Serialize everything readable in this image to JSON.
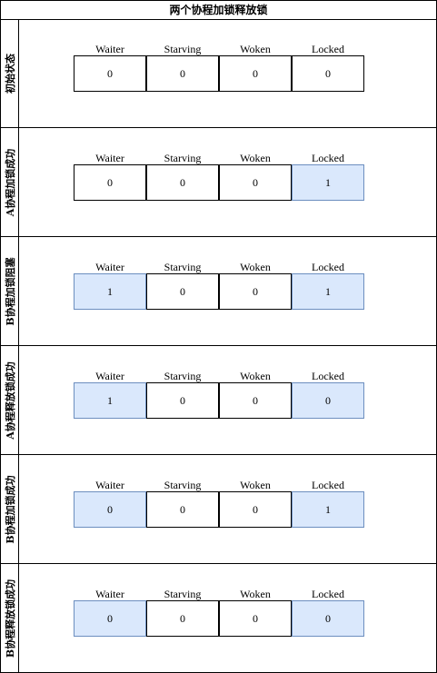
{
  "title": "两个协程加锁释放锁",
  "columns": [
    "Waiter",
    "Starving",
    "Woken",
    "Locked"
  ],
  "colors": {
    "highlight_fill": "#dae8fc",
    "highlight_border": "#6c8ebf"
  },
  "states": [
    {
      "label": "初始状态",
      "values": [
        "0",
        "0",
        "0",
        "0"
      ],
      "highlight": [
        false,
        false,
        false,
        false
      ]
    },
    {
      "label": "A协程加锁成功",
      "values": [
        "0",
        "0",
        "0",
        "1"
      ],
      "highlight": [
        false,
        false,
        false,
        true
      ]
    },
    {
      "label": "B协程加锁阻塞",
      "values": [
        "1",
        "0",
        "0",
        "1"
      ],
      "highlight": [
        true,
        false,
        false,
        true
      ]
    },
    {
      "label": "A协程释放锁成功",
      "values": [
        "1",
        "0",
        "0",
        "0"
      ],
      "highlight": [
        true,
        false,
        false,
        true
      ]
    },
    {
      "label": "B协程加锁成功",
      "values": [
        "0",
        "0",
        "0",
        "1"
      ],
      "highlight": [
        true,
        false,
        false,
        true
      ]
    },
    {
      "label": "B协程释放锁成功",
      "values": [
        "0",
        "0",
        "0",
        "0"
      ],
      "highlight": [
        true,
        false,
        false,
        true
      ]
    }
  ]
}
